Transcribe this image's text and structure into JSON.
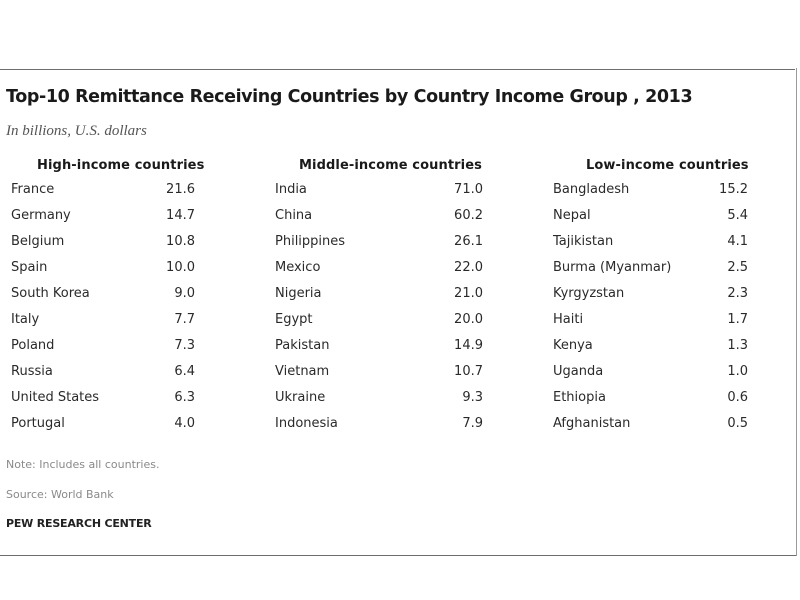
{
  "chart_data": {
    "type": "table",
    "title": "Top-10 Remittance Receiving Countries by Country Income Group , 2013",
    "subtitle": "In billions, U.S. dollars",
    "groups": [
      {
        "heading": "High-income countries",
        "rows": [
          {
            "country": "France",
            "value": "21.6"
          },
          {
            "country": "Germany",
            "value": "14.7"
          },
          {
            "country": "Belgium",
            "value": "10.8"
          },
          {
            "country": "Spain",
            "value": "10.0"
          },
          {
            "country": "South Korea",
            "value": "9.0"
          },
          {
            "country": "Italy",
            "value": "7.7"
          },
          {
            "country": "Poland",
            "value": "7.3"
          },
          {
            "country": "Russia",
            "value": "6.4"
          },
          {
            "country": "United States",
            "value": "6.3"
          },
          {
            "country": "Portugal",
            "value": "4.0"
          }
        ]
      },
      {
        "heading": "Middle-income countries",
        "rows": [
          {
            "country": "India",
            "value": "71.0"
          },
          {
            "country": "China",
            "value": "60.2"
          },
          {
            "country": "Philippines",
            "value": "26.1"
          },
          {
            "country": "Mexico",
            "value": "22.0"
          },
          {
            "country": "Nigeria",
            "value": "21.0"
          },
          {
            "country": "Egypt",
            "value": "20.0"
          },
          {
            "country": "Pakistan",
            "value": "14.9"
          },
          {
            "country": "Vietnam",
            "value": "10.7"
          },
          {
            "country": "Ukraine",
            "value": "9.3"
          },
          {
            "country": "Indonesia",
            "value": "7.9"
          }
        ]
      },
      {
        "heading": "Low-income countries",
        "rows": [
          {
            "country": "Bangladesh",
            "value": "15.2"
          },
          {
            "country": "Nepal",
            "value": "5.4"
          },
          {
            "country": "Tajikistan",
            "value": "4.1"
          },
          {
            "country": "Burma (Myanmar)",
            "value": "2.5"
          },
          {
            "country": "Kyrgyzstan",
            "value": "2.3"
          },
          {
            "country": "Haiti",
            "value": "1.7"
          },
          {
            "country": "Kenya",
            "value": "1.3"
          },
          {
            "country": "Uganda",
            "value": "1.0"
          },
          {
            "country": "Ethiopia",
            "value": "0.6"
          },
          {
            "country": "Afghanistan",
            "value": "0.5"
          }
        ]
      }
    ]
  },
  "note": "Note: Includes all countries.",
  "source": "Source: World Bank",
  "brand": "PEW RESEARCH CENTER"
}
